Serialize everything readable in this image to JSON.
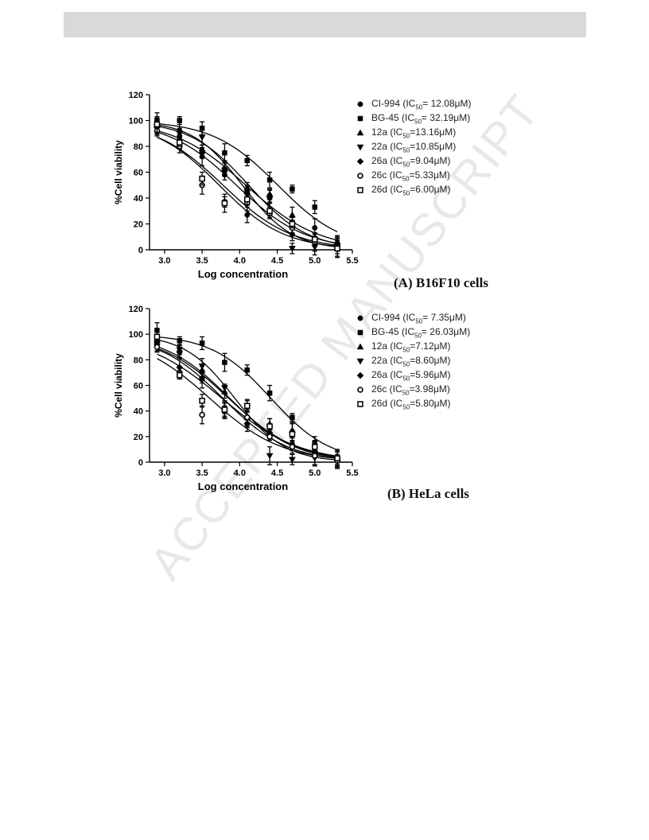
{
  "watermark": "ACCEPTED MANUSCRIPT",
  "chart_data": [
    {
      "type": "scatter",
      "panel_caption": "(A) B16F10 cells",
      "xlabel": "Log concentration",
      "ylabel": "%Cell viability",
      "xlim": [
        2.8,
        5.5
      ],
      "ylim": [
        0,
        120
      ],
      "xticks": [
        "3.0",
        "3.5",
        "4.0",
        "4.5",
        "5.0",
        "5.5"
      ],
      "yticks": [
        "0",
        "20",
        "40",
        "60",
        "80",
        "100",
        "120"
      ],
      "x": [
        2.9,
        3.2,
        3.5,
        3.8,
        4.1,
        4.4,
        4.7,
        5.0,
        5.3
      ],
      "series": [
        {
          "name": "CI-994",
          "ic50": "12.08",
          "marker": "circle",
          "values": [
            98,
            88,
            72,
            58,
            27,
            40,
            12,
            17,
            3
          ]
        },
        {
          "name": "BG-45",
          "ic50": "32.19",
          "marker": "square",
          "values": [
            100,
            100,
            94,
            75,
            69,
            54,
            47,
            33,
            2
          ]
        },
        {
          "name": "12a",
          "ic50": "13.16",
          "marker": "triangle-up",
          "values": [
            96,
            93,
            78,
            62,
            45,
            43,
            27,
            10,
            5
          ]
        },
        {
          "name": "22a",
          "ic50": "10.85",
          "marker": "triangle-down",
          "values": [
            95,
            90,
            87,
            60,
            44,
            40,
            1,
            2,
            3
          ]
        },
        {
          "name": "26a",
          "ic50": "9.04",
          "marker": "diamond",
          "values": [
            95,
            85,
            75,
            63,
            47,
            41,
            18,
            8,
            5
          ]
        },
        {
          "name": "26c",
          "ic50": "5.33",
          "marker": "open-circle",
          "values": [
            92,
            80,
            50,
            37,
            36,
            28,
            17,
            6,
            1
          ]
        },
        {
          "name": "26d",
          "ic50": "6.00",
          "marker": "open-square",
          "values": [
            97,
            83,
            55,
            36,
            39,
            30,
            20,
            8,
            1
          ]
        }
      ]
    },
    {
      "type": "scatter",
      "panel_caption": "(B) HeLa cells",
      "xlabel": "Log concentration",
      "ylabel": "%Cell viability",
      "xlim": [
        2.8,
        5.5
      ],
      "ylim": [
        0,
        120
      ],
      "xticks": [
        "3.0",
        "3.5",
        "4.0",
        "4.5",
        "5.0",
        "5.5"
      ],
      "yticks": [
        "0",
        "20",
        "40",
        "60",
        "80",
        "100",
        "120"
      ],
      "x": [
        2.9,
        3.2,
        3.5,
        3.8,
        4.1,
        4.4,
        4.7,
        5.0,
        5.3
      ],
      "series": [
        {
          "name": "CI-994",
          "ic50": "7.35",
          "marker": "circle",
          "values": [
            96,
            86,
            65,
            42,
            30,
            22,
            14,
            5,
            2
          ]
        },
        {
          "name": "BG-45",
          "ic50": "26.03",
          "marker": "square",
          "values": [
            103,
            95,
            93,
            78,
            72,
            54,
            35,
            15,
            2
          ]
        },
        {
          "name": "12a",
          "ic50": "7.12",
          "marker": "triangle-up",
          "values": [
            95,
            88,
            72,
            55,
            35,
            30,
            25,
            10,
            3
          ]
        },
        {
          "name": "22a",
          "ic50": "8.60",
          "marker": "triangle-down",
          "values": [
            93,
            88,
            75,
            58,
            44,
            5,
            2,
            3,
            1
          ]
        },
        {
          "name": "26a",
          "ic50": "5.96",
          "marker": "diamond",
          "values": [
            92,
            74,
            66,
            41,
            30,
            23,
            23,
            8,
            2
          ]
        },
        {
          "name": "26c",
          "ic50": "3.98",
          "marker": "open-circle",
          "values": [
            90,
            70,
            37,
            40,
            35,
            20,
            12,
            5,
            1
          ]
        },
        {
          "name": "26d",
          "ic50": "5.80",
          "marker": "open-square",
          "values": [
            98,
            68,
            48,
            41,
            44,
            28,
            22,
            12,
            3
          ]
        }
      ]
    }
  ]
}
